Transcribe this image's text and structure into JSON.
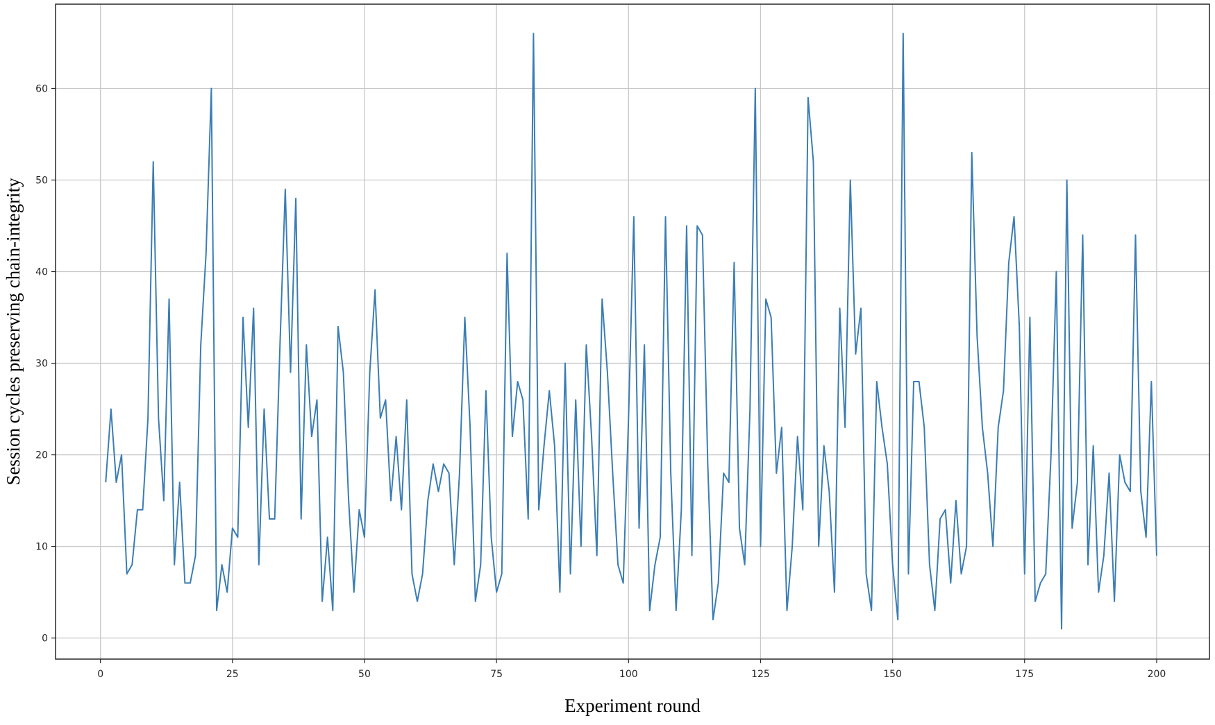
{
  "chart_data": {
    "type": "line",
    "title": "",
    "xlabel": "Experiment round",
    "ylabel": "Session cycles preserving chain-integrity",
    "xlim": [
      -8.5,
      210
    ],
    "ylim": [
      -2.3,
      69.2
    ],
    "x_ticks": [
      0,
      25,
      50,
      75,
      100,
      125,
      150,
      175,
      200
    ],
    "y_ticks": [
      0,
      10,
      20,
      30,
      40,
      50,
      60
    ],
    "grid": true,
    "legend": "none",
    "line_color": "#3a7db5",
    "series": [
      {
        "x": [
          1,
          2,
          3,
          4,
          5,
          6,
          7,
          8,
          9,
          10,
          11,
          12,
          13,
          14,
          15,
          16,
          17,
          18,
          19,
          20,
          21,
          22,
          23,
          24,
          25,
          26,
          27,
          28,
          29,
          30,
          31,
          32,
          33,
          34,
          35,
          36,
          37,
          38,
          39,
          40,
          41,
          42,
          43,
          44,
          45,
          46,
          47,
          48,
          49,
          50,
          51,
          52,
          53,
          54,
          55,
          56,
          57,
          58,
          59,
          60,
          61,
          62,
          63,
          64,
          65,
          66,
          67,
          68,
          69,
          70,
          71,
          72,
          73,
          74,
          75,
          76,
          77,
          78,
          79,
          80,
          81,
          82,
          83,
          84,
          85,
          86,
          87,
          88,
          89,
          90,
          91,
          92,
          93,
          94,
          95,
          96,
          97,
          98,
          99,
          100,
          101,
          102,
          103,
          104,
          105,
          106,
          107,
          108,
          109,
          110,
          111,
          112,
          113,
          114,
          115,
          116,
          117,
          118,
          119,
          120,
          121,
          122,
          123,
          124,
          125,
          126,
          127,
          128,
          129,
          130,
          131,
          132,
          133,
          134,
          135,
          136,
          137,
          138,
          139,
          140,
          141,
          142,
          143,
          144,
          145,
          146,
          147,
          148,
          149,
          150,
          151,
          152,
          153,
          154,
          155,
          156,
          157,
          158,
          159,
          160,
          161,
          162,
          163,
          164,
          165,
          166,
          167,
          168,
          169,
          170,
          171,
          172,
          173,
          174,
          175,
          176,
          177,
          178,
          179,
          180,
          181,
          182,
          183,
          184,
          185,
          186,
          187,
          188,
          189,
          190,
          191,
          192,
          193,
          194,
          195,
          196,
          197,
          198,
          199,
          200
        ],
        "values": [
          17,
          25,
          17,
          20,
          7,
          8,
          14,
          14,
          24,
          52,
          24,
          15,
          37,
          8,
          17,
          6,
          6,
          9,
          32,
          42,
          60,
          3,
          8,
          5,
          12,
          11,
          35,
          23,
          36,
          8,
          25,
          13,
          13,
          32,
          49,
          29,
          48,
          13,
          32,
          22,
          26,
          4,
          11,
          3,
          34,
          29,
          15,
          5,
          14,
          11,
          29,
          38,
          24,
          26,
          15,
          22,
          14,
          26,
          7,
          4,
          7,
          15,
          19,
          16,
          19,
          18,
          8,
          18,
          35,
          23,
          4,
          8,
          27,
          11,
          5,
          7,
          42,
          22,
          28,
          26,
          13,
          66,
          14,
          21,
          27,
          21,
          5,
          30,
          7,
          26,
          10,
          32,
          22,
          9,
          37,
          29,
          18,
          8,
          6,
          24,
          46,
          12,
          32,
          3,
          8,
          11,
          46,
          18,
          3,
          14,
          45,
          9,
          45,
          44,
          19,
          2,
          6,
          18,
          17,
          41,
          12,
          8,
          25,
          60,
          10,
          37,
          35,
          18,
          23,
          3,
          10,
          22,
          14,
          59,
          52,
          10,
          21,
          16,
          5,
          36,
          23,
          50,
          31,
          36,
          7,
          3,
          28,
          23,
          19,
          8,
          2,
          66,
          7,
          28,
          28,
          23,
          8,
          3,
          13,
          14,
          6,
          15,
          7,
          10,
          53,
          33,
          23,
          18,
          10,
          23,
          27,
          41,
          46,
          34,
          7,
          35,
          4,
          6,
          7,
          20,
          40,
          1,
          50,
          12,
          17,
          44,
          8,
          21,
          5,
          9,
          18,
          4,
          20,
          17,
          16,
          44,
          16,
          11,
          28,
          9
        ]
      }
    ]
  }
}
